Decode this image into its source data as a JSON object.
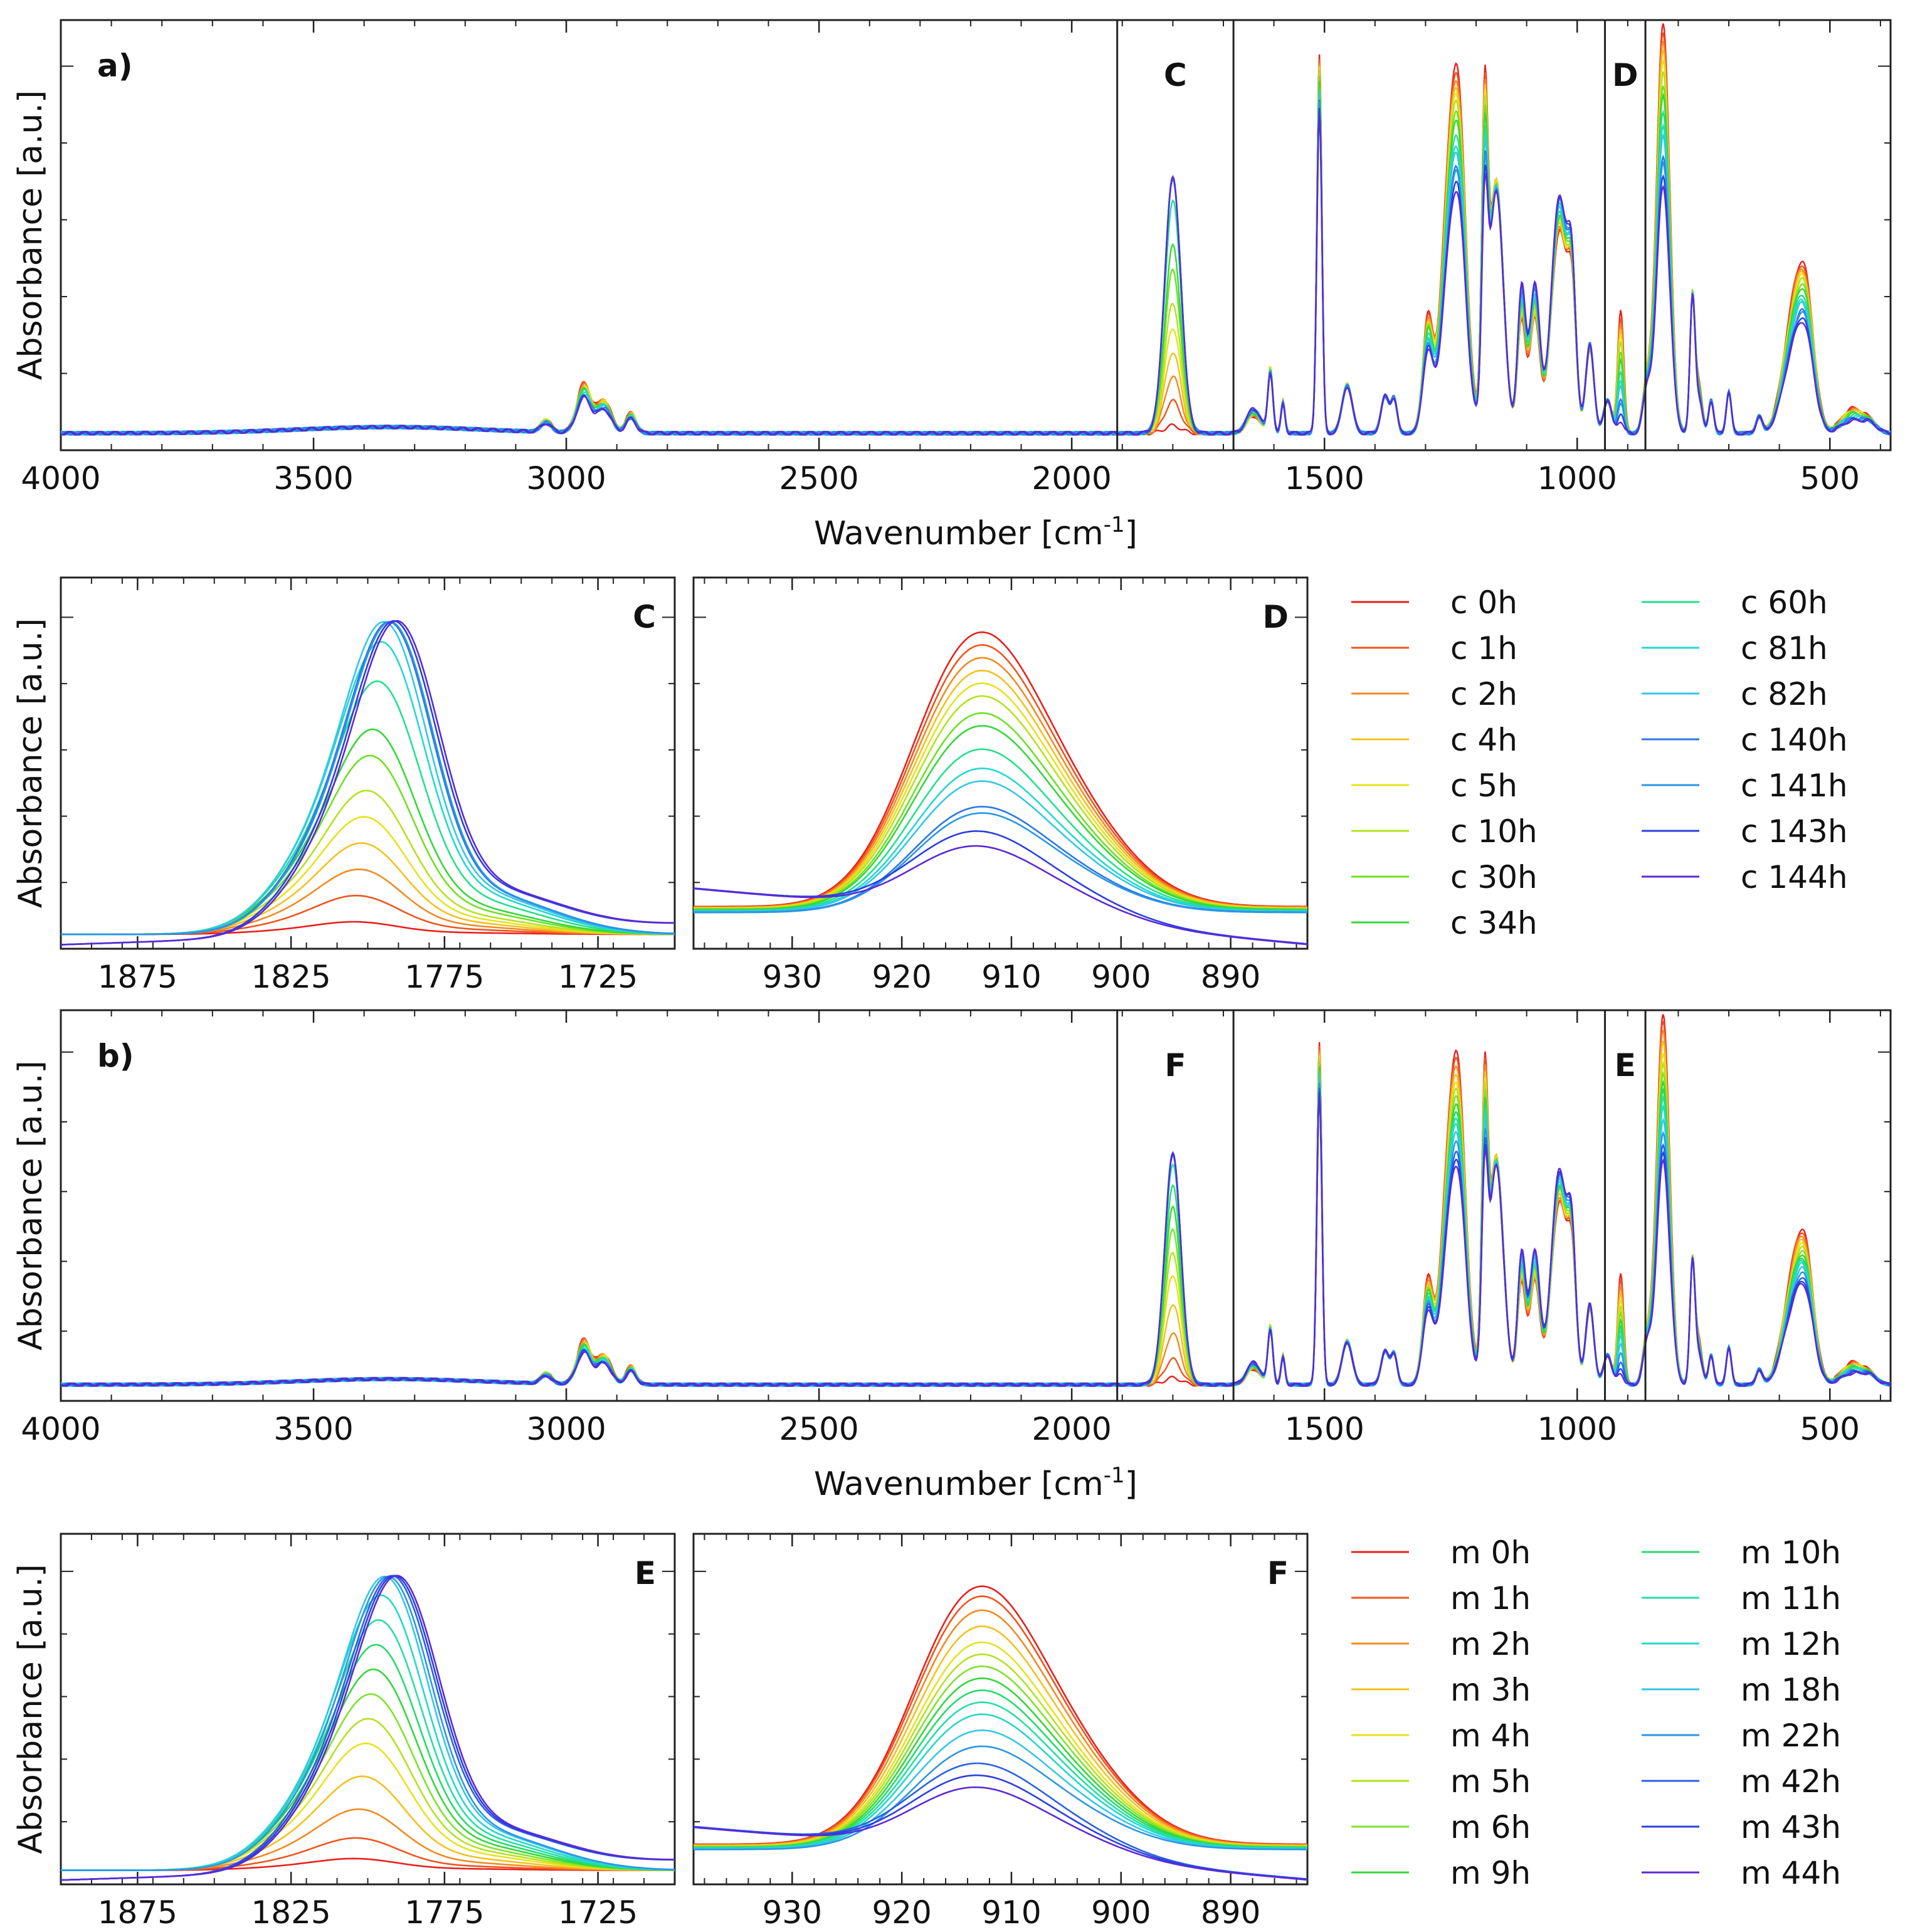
{
  "chart_data": [
    {
      "id": "a",
      "type": "line",
      "panel_label": "a)",
      "xlabel": "Wavenumber [cm",
      "xlabel_sup": "-1",
      "xlabel_end": "]",
      "ylabel": "Absorbance [a.u.]",
      "xlim": [
        4000,
        380
      ],
      "xticks": [
        4000,
        3500,
        3000,
        2500,
        2000,
        1500,
        1000,
        500
      ],
      "ylim": [
        0,
        1
      ],
      "regions": [
        {
          "label": "C",
          "from": 1910,
          "to": 1680
        },
        {
          "label": "D",
          "from": 945,
          "to": 865
        }
      ],
      "group": "c"
    },
    {
      "id": "C",
      "type": "line",
      "panel_label": "C",
      "ylabel": "Absorbance [a.u.]",
      "xlim": [
        1900,
        1700
      ],
      "xticks": [
        1875,
        1825,
        1775,
        1725
      ],
      "ylim": [
        0,
        1
      ],
      "peak_center": 1795,
      "group": "c"
    },
    {
      "id": "D",
      "type": "line",
      "panel_label": "D",
      "xlim": [
        939,
        883
      ],
      "xticks": [
        930,
        920,
        910,
        900,
        890
      ],
      "ylim": [
        0,
        1
      ],
      "peak_center": 914,
      "group": "c"
    },
    {
      "id": "b",
      "type": "line",
      "panel_label": "b)",
      "xlabel": "Wavenumber [cm",
      "xlabel_sup": "-1",
      "xlabel_end": "]",
      "ylabel": "Absorbance [a.u.]",
      "xlim": [
        4000,
        380
      ],
      "xticks": [
        4000,
        3500,
        3000,
        2500,
        2000,
        1500,
        1000,
        500
      ],
      "ylim": [
        0,
        1
      ],
      "regions": [
        {
          "label": "F",
          "from": 1910,
          "to": 1680
        },
        {
          "label": "E",
          "from": 945,
          "to": 865
        }
      ],
      "group": "m"
    },
    {
      "id": "E",
      "type": "line",
      "panel_label": "E",
      "ylabel": "Absorbance [a.u.]",
      "xlim": [
        1900,
        1700
      ],
      "xticks": [
        1875,
        1825,
        1775,
        1725
      ],
      "ylim": [
        0,
        1
      ],
      "peak_center": 1795,
      "group": "m"
    },
    {
      "id": "F",
      "type": "line",
      "panel_label": "F",
      "xlim": [
        939,
        883
      ],
      "xticks": [
        930,
        920,
        910,
        900,
        890
      ],
      "ylim": [
        0,
        1
      ],
      "peak_center": 914,
      "group": "m"
    }
  ],
  "legend_c": [
    {
      "name": "c 0h",
      "color": "#e8201c",
      "progress": 0.0
    },
    {
      "name": "c 1h",
      "color": "#f0541c",
      "progress": 0.06
    },
    {
      "name": "c 2h",
      "color": "#f28a22",
      "progress": 0.12
    },
    {
      "name": "c 4h",
      "color": "#f3c11c",
      "progress": 0.18
    },
    {
      "name": "c 5h",
      "color": "#e6e21c",
      "progress": 0.24
    },
    {
      "name": "c 10h",
      "color": "#b4e21c",
      "progress": 0.3
    },
    {
      "name": "c 30h",
      "color": "#6fe022",
      "progress": 0.38
    },
    {
      "name": "c 34h",
      "color": "#35d63a",
      "progress": 0.44
    },
    {
      "name": "c 60h",
      "color": "#22e08c",
      "progress": 0.55
    },
    {
      "name": "c 81h",
      "color": "#22d8d0",
      "progress": 0.64
    },
    {
      "name": "c 82h",
      "color": "#34c6e6",
      "progress": 0.7
    },
    {
      "name": "c 140h",
      "color": "#2b78e4",
      "progress": 0.82
    },
    {
      "name": "c 141h",
      "color": "#2a96e6",
      "progress": 0.85
    },
    {
      "name": "c 143h",
      "color": "#2a3fe0",
      "progress": 0.93
    },
    {
      "name": "c 144h",
      "color": "#5a2ad6",
      "progress": 1.0
    }
  ],
  "legend_m": [
    {
      "name": "m 0h",
      "color": "#e8201c",
      "progress": 0.0
    },
    {
      "name": "m 1h",
      "color": "#f0541c",
      "progress": 0.05
    },
    {
      "name": "m 2h",
      "color": "#f28a22",
      "progress": 0.12
    },
    {
      "name": "m 3h",
      "color": "#f3c11c",
      "progress": 0.2
    },
    {
      "name": "m 4h",
      "color": "#e6e21c",
      "progress": 0.28
    },
    {
      "name": "m 5h",
      "color": "#b4e21c",
      "progress": 0.34
    },
    {
      "name": "m 6h",
      "color": "#7ee22a",
      "progress": 0.4
    },
    {
      "name": "m 9h",
      "color": "#35d63a",
      "progress": 0.46
    },
    {
      "name": "m 10h",
      "color": "#22dc6c",
      "progress": 0.52
    },
    {
      "name": "m 11h",
      "color": "#22e0a4",
      "progress": 0.58
    },
    {
      "name": "m 12h",
      "color": "#22d8c8",
      "progress": 0.64
    },
    {
      "name": "m 18h",
      "color": "#34c6e6",
      "progress": 0.72
    },
    {
      "name": "m 22h",
      "color": "#2a96e6",
      "progress": 0.8
    },
    {
      "name": "m 42h",
      "color": "#2a60e2",
      "progress": 0.88
    },
    {
      "name": "m 43h",
      "color": "#2a3fe0",
      "progress": 0.94
    },
    {
      "name": "m 44h",
      "color": "#5a2ad6",
      "progress": 1.0
    }
  ]
}
